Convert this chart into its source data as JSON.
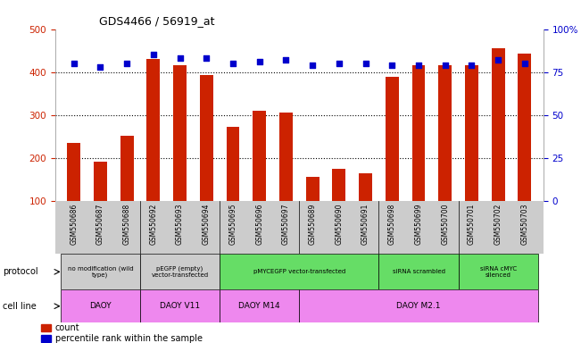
{
  "title": "GDS4466 / 56919_at",
  "samples": [
    "GSM550686",
    "GSM550687",
    "GSM550688",
    "GSM550692",
    "GSM550693",
    "GSM550694",
    "GSM550695",
    "GSM550696",
    "GSM550697",
    "GSM550689",
    "GSM550690",
    "GSM550691",
    "GSM550698",
    "GSM550699",
    "GSM550700",
    "GSM550701",
    "GSM550702",
    "GSM550703"
  ],
  "counts": [
    235,
    190,
    252,
    430,
    415,
    393,
    272,
    310,
    305,
    155,
    175,
    163,
    388,
    415,
    415,
    415,
    455,
    443
  ],
  "percentiles": [
    80,
    78,
    80,
    85,
    83,
    83,
    80,
    81,
    82,
    79,
    80,
    80,
    79,
    79,
    79,
    79,
    82,
    80
  ],
  "bar_color": "#cc2200",
  "dot_color": "#0000cc",
  "ylim_left": [
    100,
    500
  ],
  "ylim_right": [
    0,
    100
  ],
  "yticks_left": [
    100,
    200,
    300,
    400,
    500
  ],
  "yticks_right": [
    0,
    25,
    50,
    75,
    100
  ],
  "protocols": [
    {
      "label": "no modification (wild\ntype)",
      "start": 0,
      "end": 3,
      "color": "#cccccc"
    },
    {
      "label": "pEGFP (empty)\nvector-transfected",
      "start": 3,
      "end": 6,
      "color": "#cccccc"
    },
    {
      "label": "pMYCEGFP vector-transfected",
      "start": 6,
      "end": 12,
      "color": "#66dd66"
    },
    {
      "label": "siRNA scrambled",
      "start": 12,
      "end": 15,
      "color": "#66dd66"
    },
    {
      "label": "siRNA cMYC\nsilenced",
      "start": 15,
      "end": 18,
      "color": "#66dd66"
    }
  ],
  "cell_lines": [
    {
      "label": "DAOY",
      "start": 0,
      "end": 3
    },
    {
      "label": "DAOY V11",
      "start": 3,
      "end": 6
    },
    {
      "label": "DAOY M14",
      "start": 6,
      "end": 9
    },
    {
      "label": "DAOY M2.1",
      "start": 9,
      "end": 18
    }
  ],
  "cell_line_color": "#ee88ee",
  "xtick_bg_color": "#cccccc",
  "legend_count_label": "count",
  "legend_pct_label": "percentile rank within the sample",
  "ylabel_left_color": "#cc2200",
  "ylabel_right_color": "#0000cc",
  "bg_color": "#ffffff"
}
